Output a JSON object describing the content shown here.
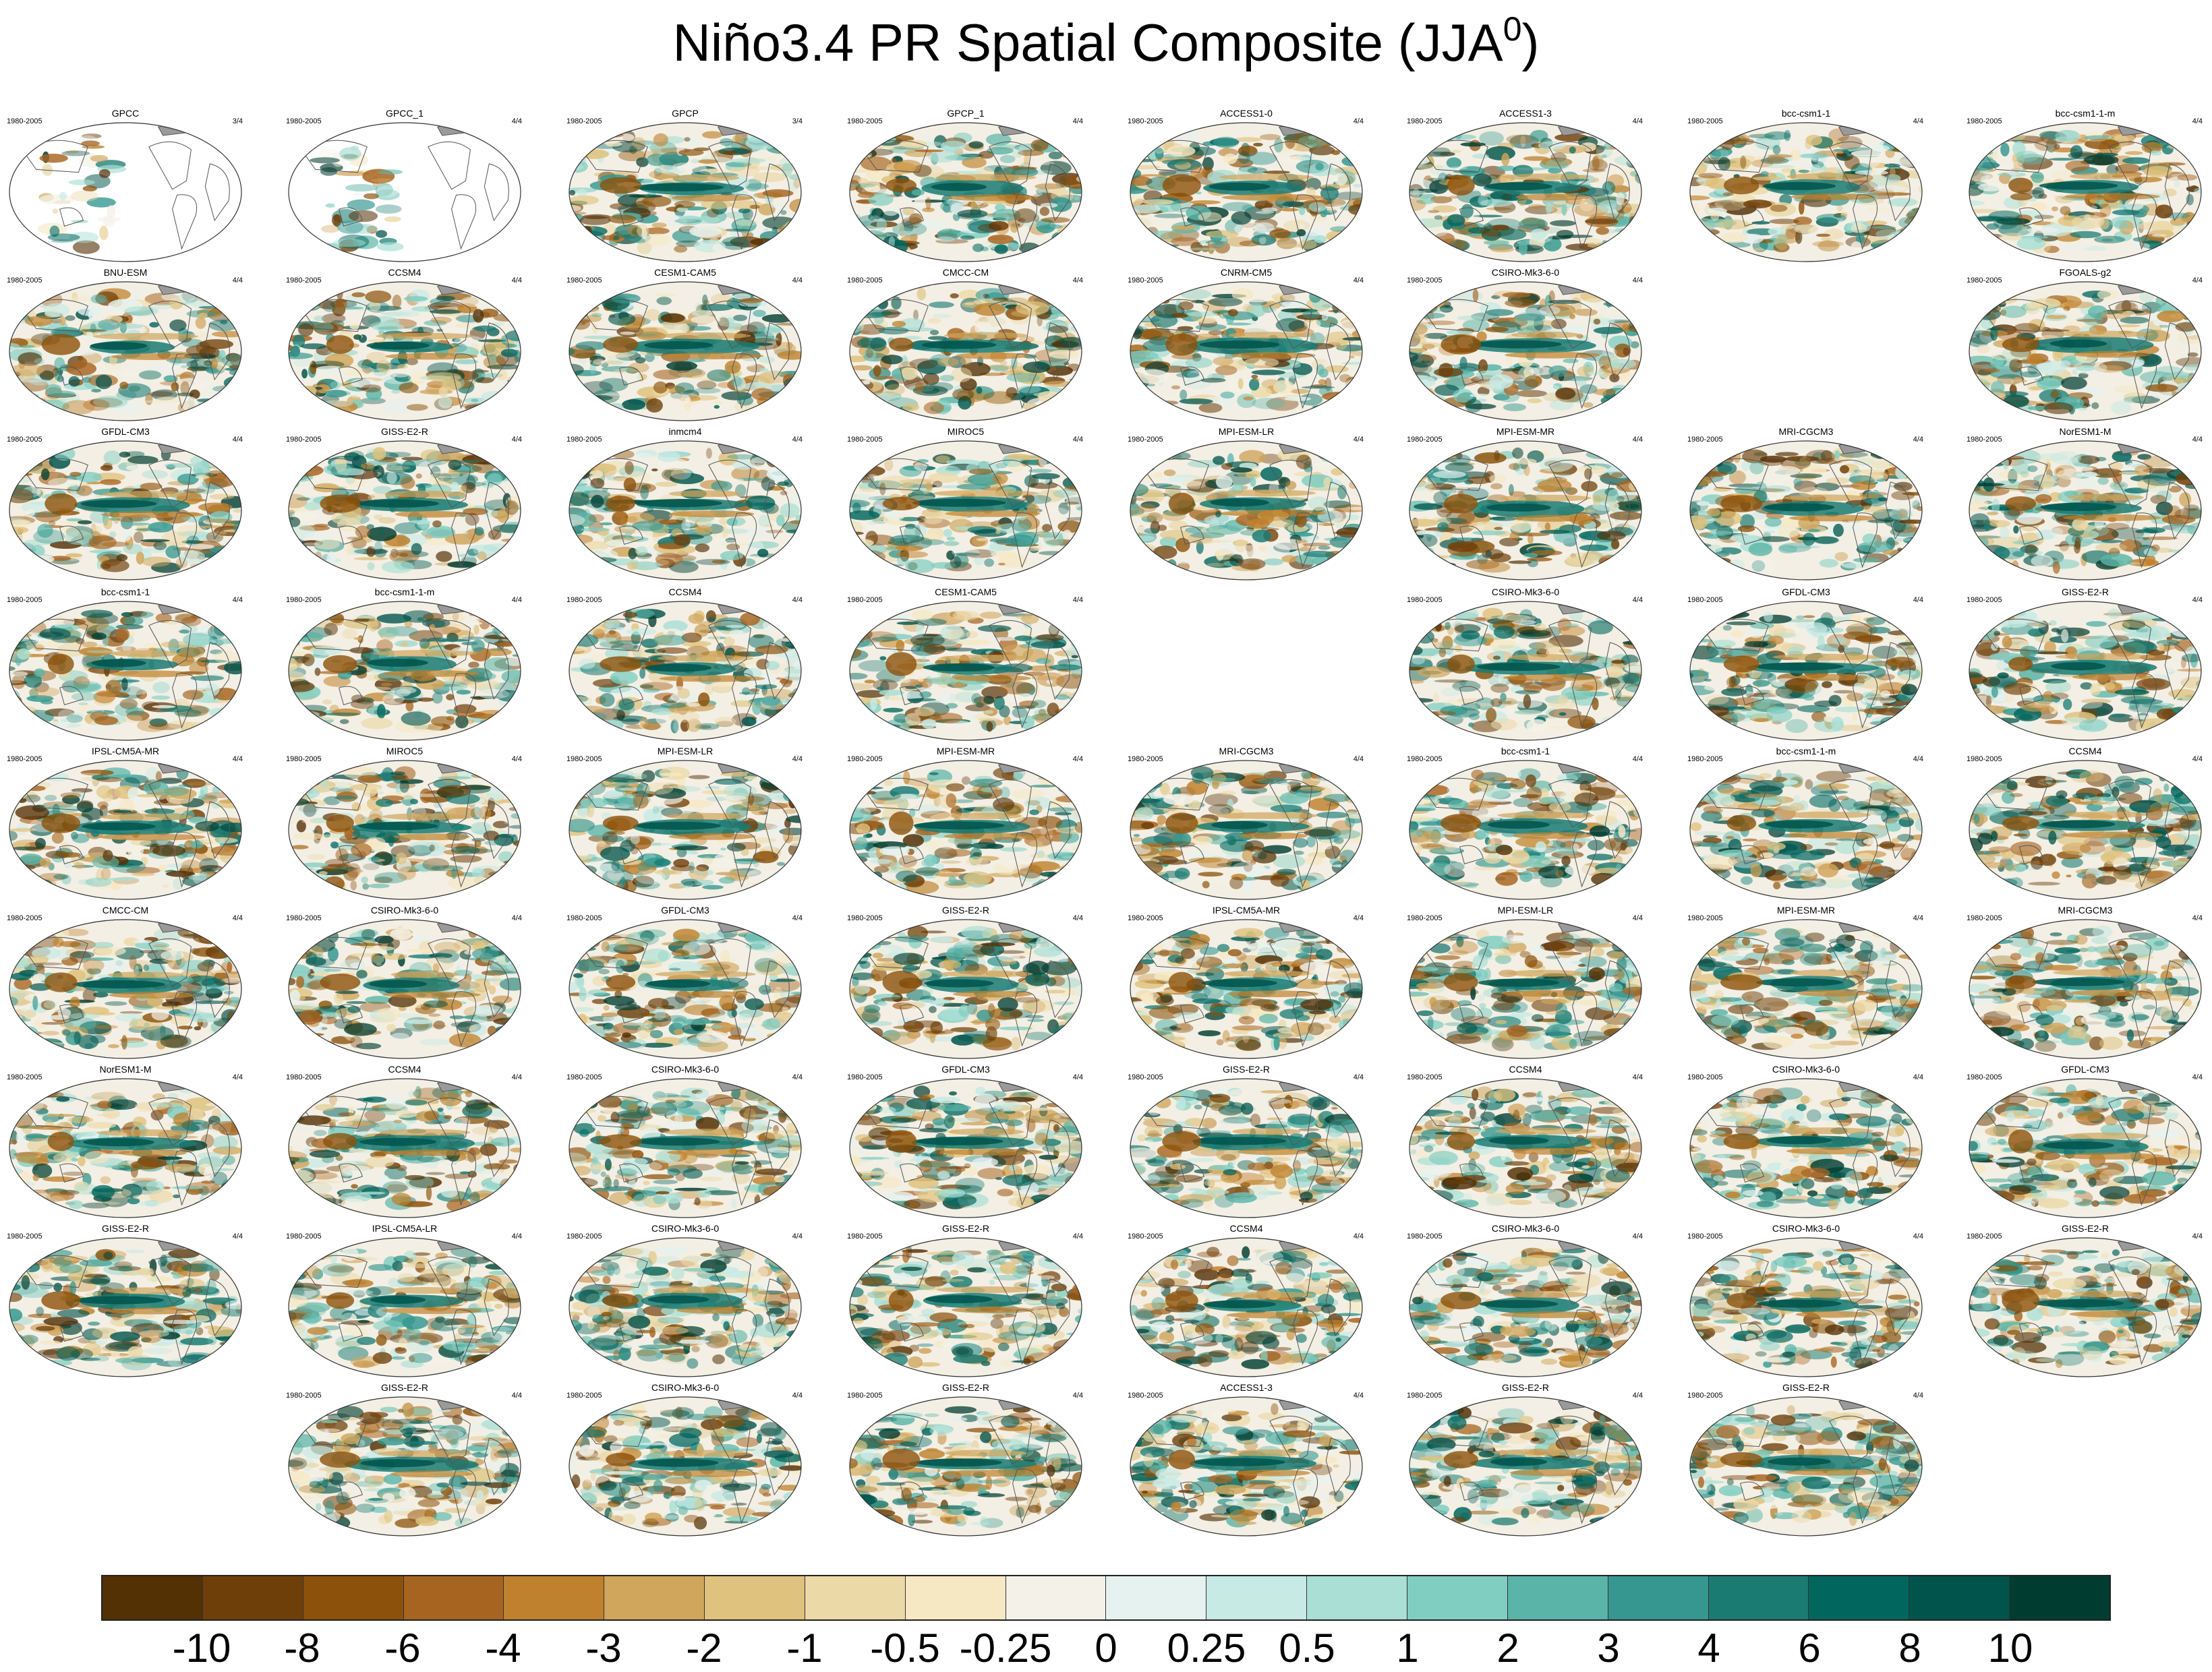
{
  "title": {
    "main": "Niño3.4 PR Spatial Composite (JJA",
    "sup": "0",
    "close": ")"
  },
  "period": "1980-2005",
  "rows": [
    [
      {
        "name": "GPCC",
        "frac": "3/4",
        "type": "obs"
      },
      {
        "name": "GPCC_1",
        "frac": "4/4",
        "type": "obs"
      },
      {
        "name": "GPCP",
        "frac": "3/4"
      },
      {
        "name": "GPCP_1",
        "frac": "4/4"
      },
      {
        "name": "ACCESS1-0",
        "frac": "4/4"
      },
      {
        "name": "ACCESS1-3",
        "frac": "4/4"
      },
      {
        "name": "bcc-csm1-1",
        "frac": "4/4"
      },
      {
        "name": "bcc-csm1-1-m",
        "frac": "4/4"
      }
    ],
    [
      {
        "name": "BNU-ESM",
        "frac": "4/4"
      },
      {
        "name": "CCSM4",
        "frac": "4/4"
      },
      {
        "name": "CESM1-CAM5",
        "frac": "4/4"
      },
      {
        "name": "CMCC-CM",
        "frac": "4/4"
      },
      {
        "name": "CNRM-CM5",
        "frac": "4/4"
      },
      {
        "name": "CSIRO-Mk3-6-0",
        "frac": "4/4"
      },
      null,
      {
        "name": "FGOALS-g2",
        "frac": "4/4"
      }
    ],
    [
      {
        "name": "GFDL-CM3",
        "frac": "4/4"
      },
      {
        "name": "GISS-E2-R",
        "frac": "4/4"
      },
      {
        "name": "inmcm4",
        "frac": "4/4"
      },
      {
        "name": "MIROC5",
        "frac": "4/4"
      },
      {
        "name": "MPI-ESM-LR",
        "frac": "4/4"
      },
      {
        "name": "MPI-ESM-MR",
        "frac": "4/4"
      },
      {
        "name": "MRI-CGCM3",
        "frac": "4/4"
      },
      {
        "name": "NorESM1-M",
        "frac": "4/4"
      }
    ],
    [
      {
        "name": "bcc-csm1-1",
        "frac": "4/4"
      },
      {
        "name": "bcc-csm1-1-m",
        "frac": "4/4"
      },
      {
        "name": "CCSM4",
        "frac": "4/4"
      },
      {
        "name": "CESM1-CAM5",
        "frac": "4/4"
      },
      null,
      {
        "name": "CSIRO-Mk3-6-0",
        "frac": "4/4"
      },
      {
        "name": "GFDL-CM3",
        "frac": "4/4"
      },
      {
        "name": "GISS-E2-R",
        "frac": "4/4"
      }
    ],
    [
      {
        "name": "IPSL-CM5A-MR",
        "frac": "4/4"
      },
      {
        "name": "MIROC5",
        "frac": "4/4"
      },
      {
        "name": "MPI-ESM-LR",
        "frac": "4/4"
      },
      {
        "name": "MPI-ESM-MR",
        "frac": "4/4"
      },
      {
        "name": "MRI-CGCM3",
        "frac": "4/4"
      },
      {
        "name": "bcc-csm1-1",
        "frac": "4/4"
      },
      {
        "name": "bcc-csm1-1-m",
        "frac": "4/4"
      },
      {
        "name": "CCSM4",
        "frac": "4/4"
      }
    ],
    [
      {
        "name": "CMCC-CM",
        "frac": "4/4"
      },
      {
        "name": "CSIRO-Mk3-6-0",
        "frac": "4/4"
      },
      {
        "name": "GFDL-CM3",
        "frac": "4/4"
      },
      {
        "name": "GISS-E2-R",
        "frac": "4/4"
      },
      {
        "name": "IPSL-CM5A-MR",
        "frac": "4/4"
      },
      {
        "name": "MPI-ESM-LR",
        "frac": "4/4"
      },
      {
        "name": "MPI-ESM-MR",
        "frac": "4/4"
      },
      {
        "name": "MRI-CGCM3",
        "frac": "4/4"
      }
    ],
    [
      {
        "name": "NorESM1-M",
        "frac": "4/4"
      },
      {
        "name": "CCSM4",
        "frac": "4/4"
      },
      {
        "name": "CSIRO-Mk3-6-0",
        "frac": "4/4"
      },
      {
        "name": "GFDL-CM3",
        "frac": "4/4"
      },
      {
        "name": "GISS-E2-R",
        "frac": "4/4"
      },
      {
        "name": "CCSM4",
        "frac": "4/4"
      },
      {
        "name": "CSIRO-Mk3-6-0",
        "frac": "4/4"
      },
      {
        "name": "GFDL-CM3",
        "frac": "4/4"
      }
    ],
    [
      {
        "name": "GISS-E2-R",
        "frac": "4/4"
      },
      {
        "name": "IPSL-CM5A-LR",
        "frac": "4/4"
      },
      {
        "name": "CSIRO-Mk3-6-0",
        "frac": "4/4"
      },
      {
        "name": "GISS-E2-R",
        "frac": "4/4"
      },
      {
        "name": "CCSM4",
        "frac": "4/4"
      },
      {
        "name": "CSIRO-Mk3-6-0",
        "frac": "4/4"
      },
      {
        "name": "CSIRO-Mk3-6-0",
        "frac": "4/4"
      },
      {
        "name": "GISS-E2-R",
        "frac": "4/4"
      }
    ],
    [
      null,
      {
        "name": "GISS-E2-R",
        "frac": "4/4"
      },
      {
        "name": "CSIRO-Mk3-6-0",
        "frac": "4/4"
      },
      {
        "name": "GISS-E2-R",
        "frac": "4/4"
      },
      {
        "name": "ACCESS1-3",
        "frac": "4/4"
      },
      {
        "name": "GISS-E2-R",
        "frac": "4/4"
      },
      {
        "name": "GISS-E2-R",
        "frac": "4/4"
      },
      null
    ]
  ],
  "colorbar": {
    "labels": [
      "-10",
      "-8",
      "-6",
      "-4",
      "-3",
      "-2",
      "-1",
      "-0.5",
      "-0.25",
      "0",
      "0.25",
      "0.5",
      "1",
      "2",
      "3",
      "4",
      "6",
      "8",
      "10"
    ],
    "colors": [
      "#543005",
      "#6f3f0a",
      "#8c510a",
      "#a76420",
      "#bf812d",
      "#d0a55c",
      "#dfc27d",
      "#ecd9a8",
      "#f6e8c3",
      "#f4f1e8",
      "#e6f2f0",
      "#c7eae5",
      "#aadfd5",
      "#80cdc1",
      "#5ab4a8",
      "#35978f",
      "#1a7b73",
      "#01665e",
      "#00544b",
      "#003c30"
    ]
  },
  "map_colors": {
    "ocean_bg": "#f3efe4",
    "coast": "#555555",
    "land_gray": "#9a9a9a"
  }
}
